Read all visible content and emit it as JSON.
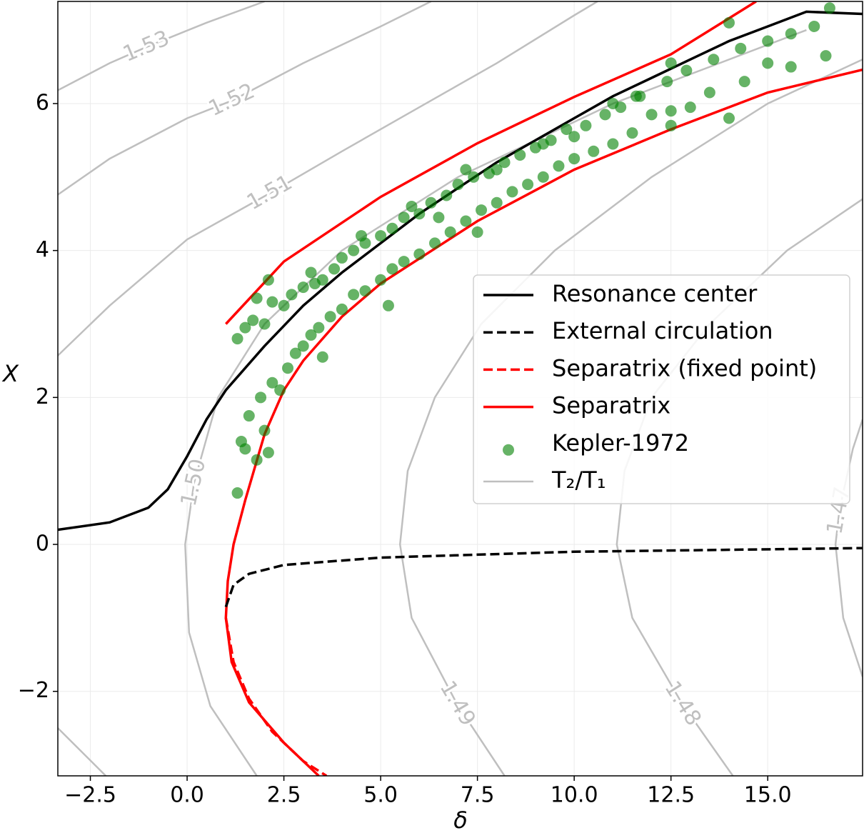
{
  "chart_data": {
    "type": "line",
    "xlabel": "δ",
    "ylabel": "X",
    "xlim": [
      -3.34,
      17.45
    ],
    "ylim": [
      -3.15,
      7.39
    ],
    "xticks": [
      {
        "value": -2.5,
        "label": "−2.5"
      },
      {
        "value": 0,
        "label": "0.0"
      },
      2.5,
      {
        "value": 5,
        "label": "5.0"
      },
      7.5,
      {
        "value": 10,
        "label": "10.0"
      },
      12.5,
      {
        "value": 15,
        "label": "15.0"
      }
    ],
    "yticks": [
      {
        "value": -2,
        "label": "−2"
      },
      0,
      2,
      4,
      6
    ],
    "grid": true,
    "series": [
      {
        "name": "Resonance center",
        "color": "#000000",
        "style": "solid",
        "x": [
          -3.34,
          -2,
          -1,
          -0.5,
          0,
          0.5,
          1,
          2,
          3,
          4,
          5,
          6,
          7,
          8,
          9,
          10,
          11,
          12,
          13,
          14,
          15,
          16,
          17.45
        ],
        "values": [
          0.2,
          0.3,
          0.5,
          0.75,
          1.2,
          1.7,
          2.1,
          2.7,
          3.25,
          3.7,
          4.1,
          4.5,
          4.85,
          5.2,
          5.5,
          5.8,
          6.1,
          6.35,
          6.6,
          6.85,
          7.05,
          7.25,
          7.22
        ]
      },
      {
        "name": "External circulation",
        "color": "#000000",
        "style": "dashed",
        "x": [
          1.0,
          1.2,
          1.6,
          2.5,
          5,
          10,
          17.45
        ],
        "values": [
          -0.85,
          -0.55,
          -0.4,
          -0.28,
          -0.18,
          -0.1,
          -0.05
        ]
      },
      {
        "name": "Separatrix (fixed point)",
        "color": "#ff0000",
        "style": "dashed",
        "x": [
          1.0,
          1.2,
          1.6,
          2.2,
          3.0,
          3.6
        ],
        "values": [
          -1.0,
          -1.6,
          -2.1,
          -2.55,
          -2.95,
          -3.15
        ]
      },
      {
        "name": "Separatrix",
        "color": "#ff0000",
        "style": "solid",
        "x": [
          3.4,
          2.5,
          1.6,
          1.15,
          1.0,
          1.05,
          1.2,
          1.5,
          2,
          2.5,
          3,
          4,
          5,
          7.5,
          10,
          12.5,
          15,
          17.45,
          null,
          1.0,
          2.5,
          5,
          7.5,
          10,
          12.5,
          14.7
        ],
        "values": [
          -3.15,
          -2.7,
          -2.15,
          -1.6,
          -1.0,
          -0.5,
          0,
          0.6,
          1.5,
          2.1,
          2.5,
          3.1,
          3.55,
          4.4,
          5.1,
          5.65,
          6.15,
          6.46,
          null,
          3.0,
          3.85,
          4.73,
          5.46,
          6.09,
          6.67,
          7.39
        ]
      },
      {
        "name": "Kepler-1972",
        "color": "#008000",
        "style": "markers",
        "x": [
          1.3,
          1.5,
          1.7,
          2.0,
          2.2,
          2.5,
          2.7,
          3.0,
          3.2,
          3.5,
          3.8,
          4.0,
          4.3,
          4.6,
          5.0,
          5.3,
          5.6,
          6.0,
          6.3,
          6.7,
          7.0,
          7.4,
          7.8,
          8.2,
          8.6,
          9.0,
          9.4,
          9.8,
          10.3,
          10.8,
          11.2,
          11.7,
          12.4,
          12.9,
          13.6,
          14.3,
          15.0,
          15.6,
          16.2,
          16.6,
          4.5,
          3.3,
          2.1,
          1.8,
          5.8,
          7.2,
          9.2,
          11.0,
          12.5,
          14.0,
          6.5,
          8.0,
          10.0,
          1.3,
          1.4,
          1.5,
          1.6,
          1.8,
          1.9,
          2.1,
          2.0,
          2.2,
          2.4,
          2.6,
          2.8,
          3.0,
          3.2,
          3.4,
          3.7,
          4.0,
          4.3,
          4.6,
          5.0,
          5.3,
          5.6,
          6.0,
          6.4,
          6.8,
          7.2,
          7.6,
          8.0,
          8.4,
          8.8,
          9.2,
          9.6,
          10.0,
          10.5,
          11.0,
          11.5,
          12.0,
          12.5,
          13.0,
          13.5,
          14.0,
          14.4,
          15.0,
          15.6,
          16.5,
          5.2,
          7.5,
          3.5,
          12.5,
          11.6
        ],
        "values": [
          2.8,
          2.95,
          3.05,
          3.0,
          3.3,
          3.25,
          3.4,
          3.5,
          3.7,
          3.6,
          3.75,
          3.9,
          4.0,
          4.1,
          4.2,
          4.3,
          4.45,
          4.5,
          4.65,
          4.75,
          4.9,
          5.0,
          5.05,
          5.2,
          5.3,
          5.4,
          5.5,
          5.65,
          5.7,
          5.85,
          5.95,
          6.1,
          6.3,
          6.45,
          6.6,
          6.75,
          6.85,
          6.95,
          7.05,
          7.3,
          4.2,
          3.55,
          3.6,
          3.35,
          4.6,
          5.1,
          5.45,
          6.0,
          6.55,
          7.1,
          4.45,
          5.1,
          5.55,
          0.7,
          1.4,
          1.3,
          1.75,
          1.15,
          2.0,
          1.25,
          1.55,
          2.2,
          2.1,
          2.4,
          2.6,
          2.7,
          2.85,
          2.95,
          3.1,
          3.2,
          3.4,
          3.45,
          3.6,
          3.75,
          3.85,
          3.95,
          4.1,
          4.25,
          4.4,
          4.55,
          4.65,
          4.8,
          4.9,
          5.0,
          5.15,
          5.25,
          5.35,
          5.45,
          5.6,
          5.85,
          5.9,
          5.95,
          6.15,
          5.8,
          6.3,
          6.55,
          6.5,
          6.65,
          3.25,
          4.25,
          2.55,
          5.7,
          6.1
        ]
      },
      {
        "name": "T₂/T₁",
        "color": "#bfbfbf",
        "style": "contours",
        "contours": [
          {
            "level": 1.53,
            "x": [
              -3.34,
              -2,
              -1.05,
              0.5,
              2
            ],
            "values": [
              6.18,
              6.55,
              6.77,
              7.1,
              7.39
            ]
          },
          {
            "level": 1.52,
            "x": [
              -3.34,
              -2,
              0,
              1.16,
              3,
              5,
              6.3
            ],
            "values": [
              4.76,
              5.25,
              5.8,
              6.04,
              6.55,
              7.05,
              7.39
            ]
          },
          {
            "level": 1.51,
            "x": [
              -3.34,
              -2,
              0,
              2.14,
              4,
              6,
              8,
              10,
              10.6,
              null,
              -3.34,
              -2.1
            ],
            "values": [
              2.57,
              3.25,
              4.15,
              4.78,
              5.35,
              5.95,
              6.55,
              7.2,
              7.39,
              null,
              -2.5,
              -3.15
            ]
          },
          {
            "level": {
              "value": 1.5,
              "label": "1.50"
            },
            "x": [
              1.8,
              0.6,
              0.05,
              -0.05,
              0.18,
              0.8,
              2,
              4,
              7,
              11,
              16
            ],
            "values": [
              -3.15,
              -2.2,
              -1.2,
              0,
              0.84,
              2.0,
              3.0,
              4.0,
              5.0,
              6.0,
              7.0
            ]
          },
          {
            "level": 1.49,
            "x": [
              8.2,
              6.97,
              5.8,
              5.5,
              5.7,
              6.4,
              7.6,
              9.5,
              12,
              15,
              17.45
            ],
            "values": [
              -3.15,
              -2.17,
              -1.0,
              0,
              1.0,
              2.0,
              3.0,
              4.0,
              5.0,
              6.0,
              6.6
            ]
          },
          {
            "level": 1.48,
            "x": [
              14.1,
              12.79,
              11.5,
              11.1,
              11.3,
              12,
              13.5,
              15.5,
              17.45
            ],
            "values": [
              -3.15,
              -2.17,
              -1,
              0,
              1.0,
              2.0,
              3.0,
              4.0,
              4.7
            ]
          },
          {
            "level": 1.47,
            "x": [
              17.45,
              16.95,
              16.75,
              16.85,
              17.2,
              17.45
            ],
            "values": [
              -1.8,
              -1.0,
              0,
              0.46,
              1.3,
              1.7
            ]
          }
        ]
      }
    ]
  }
}
